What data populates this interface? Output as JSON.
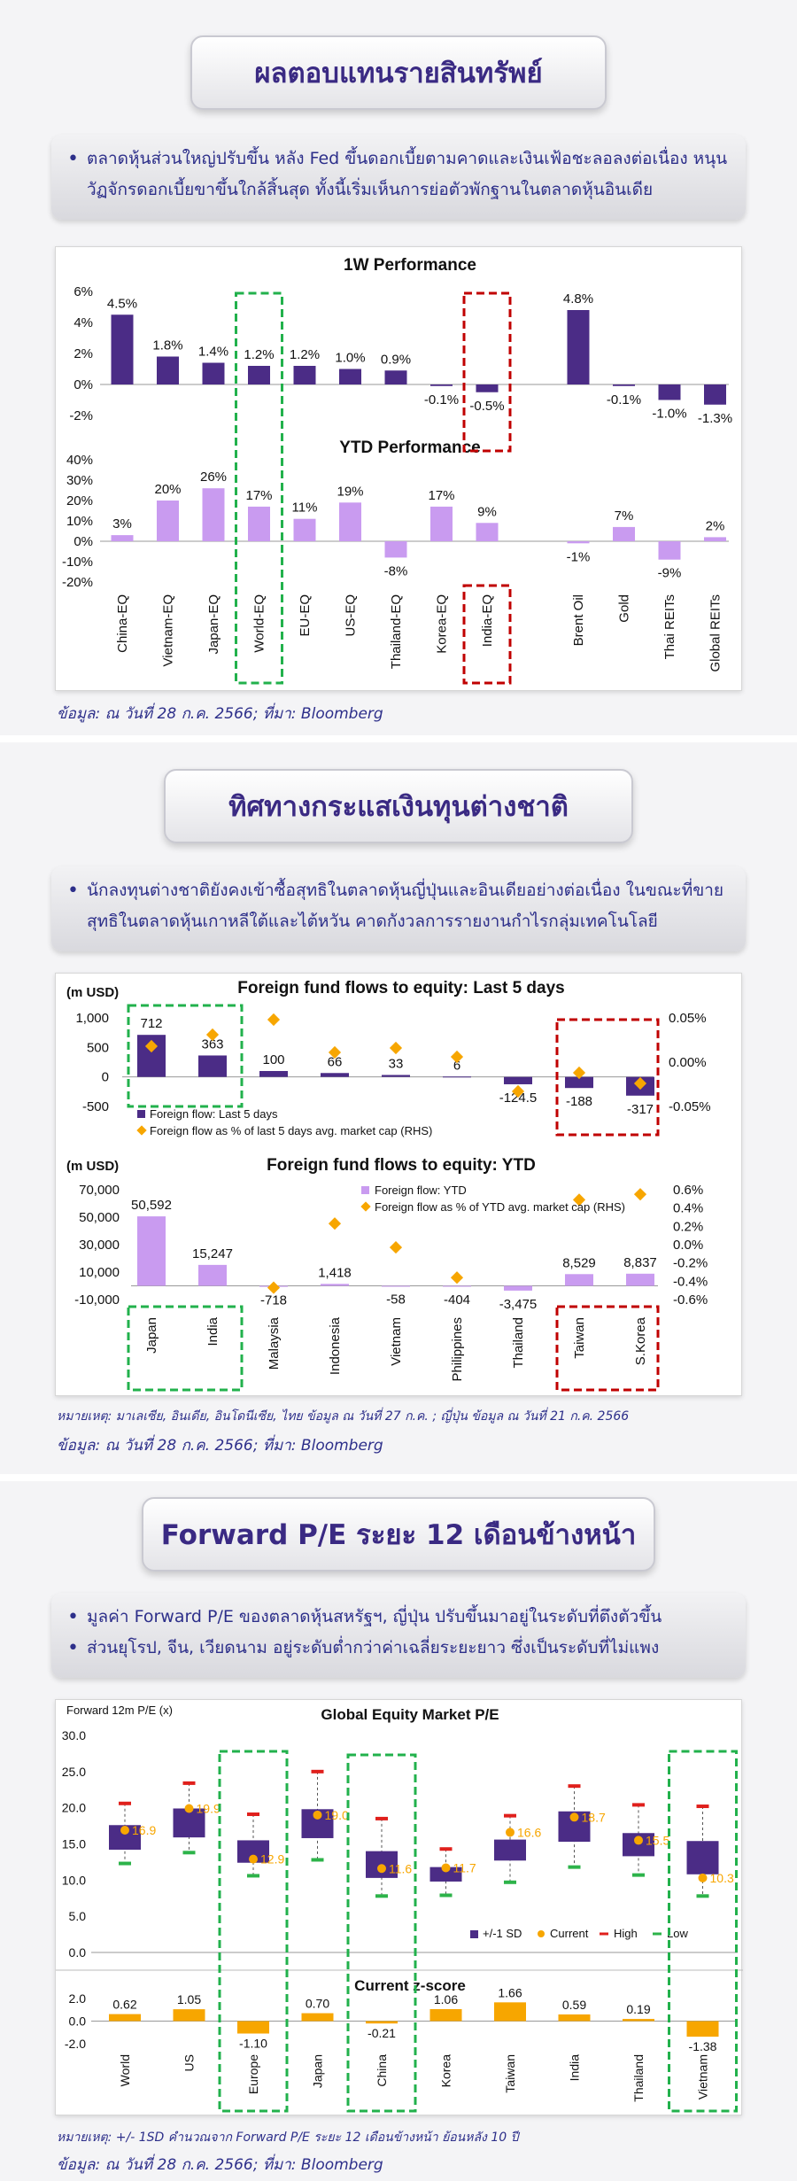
{
  "section1": {
    "title": "ผลตอบแทนรายสินทรัพย์",
    "bullets": [
      "ตลาดหุ้นส่วนใหญ่ปรับขึ้น หลัง Fed ขึ้นดอกเบี้ยตามคาดและเงินเฟ้อชะลอลงต่อเนื่อง หนุนวัฏจักรดอกเบี้ยขาขึ้นใกล้สิ้นสุด ทั้งนี้เริ่มเห็นการย่อตัวพักฐานในตลาดหุ้นอินเดีย"
    ],
    "source": "ข้อมูล: ณ วันที่ 28 ก.ค. 2566; ที่มา: Bloomberg"
  },
  "section2": {
    "title": "ทิศทางกระแสเงินทุนต่างชาติ",
    "bullets": [
      "นักลงทุนต่างชาติยังคงเข้าซื้อสุทธิในตลาดหุ้นญี่ปุ่นและอินเดียอย่างต่อเนื่อง ในขณะที่ขายสุทธิในตลาดหุ้นเกาหลีใต้และไต้หวัน คาดกังวลการรายงานกำไรกลุ่มเทคโนโลยี"
    ],
    "note": "หมายเหตุ: มาเลเซีย, อินเดีย, อินโดนีเซีย, ไทย ข้อมูล ณ วันที่ 27 ก.ค. ; ญี่ปุ่น ข้อมูล ณ วันที่ 21 ก.ค. 2566",
    "source": "ข้อมูล: ณ วันที่ 28 ก.ค. 2566; ที่มา: Bloomberg"
  },
  "section3": {
    "title": "Forward P/E ระยะ 12 เดือนข้างหน้า",
    "bullets": [
      "มูลค่า Forward P/E ของตลาดหุ้นสหรัฐฯ, ญี่ปุ่น ปรับขึ้นมาอยู่ในระดับที่ตึงตัวขึ้น",
      "ส่วนยุโรป, จีน, เวียดนาม อยู่ระดับต่ำกว่าค่าเฉลี่ยระยะยาว ซึ่งเป็นระดับที่ไม่แพง"
    ],
    "note": "หมายเหตุ: +/- 1SD คำนวณจาก Forward P/E ระยะ 12 เดือนข้างหน้า ย้อนหลัง 10 ปี",
    "source": "ข้อมูล: ณ วันที่ 28 ก.ค. 2566; ที่มา: Bloomberg"
  },
  "colors": {
    "dark_purple": "#4b2c86",
    "light_purple": "#c99bf0",
    "orange": "#f7a600",
    "green_box": "#22b14c",
    "red_box": "#c00000",
    "red_high": "#e0201c",
    "green_low": "#2db34a"
  },
  "chart_data": [
    {
      "type": "bar",
      "title": "1W Performance",
      "categories": [
        "China-EQ",
        "Vietnam-EQ",
        "Japan-EQ",
        "World-EQ",
        "EU-EQ",
        "US-EQ",
        "Thailand-EQ",
        "Korea-EQ",
        "India-EQ",
        "Brent Oil",
        "Gold",
        "Thai REITs",
        "Global REITs"
      ],
      "values": [
        4.5,
        1.8,
        1.4,
        1.2,
        1.2,
        1.0,
        0.9,
        -0.1,
        -0.5,
        4.8,
        -0.1,
        -1.0,
        -1.3
      ],
      "labels": [
        "4.5%",
        "1.8%",
        "1.4%",
        "1.2%",
        "1.2%",
        "1.0%",
        "0.9%",
        "-0.1%",
        "-0.5%",
        "4.8%",
        "-0.1%",
        "-1.0%",
        "-1.3%"
      ],
      "ylim": [
        -2,
        6
      ],
      "yticks": [
        "6%",
        "4%",
        "2%",
        "0%",
        "-2%"
      ]
    },
    {
      "type": "bar",
      "title": "YTD Performance",
      "categories": [
        "China-EQ",
        "Vietnam-EQ",
        "Japan-EQ",
        "World-EQ",
        "EU-EQ",
        "US-EQ",
        "Thailand-EQ",
        "Korea-EQ",
        "India-EQ",
        "Brent Oil",
        "Gold",
        "Thai REITs",
        "Global REITs"
      ],
      "values": [
        3,
        20,
        26,
        17,
        11,
        19,
        -8,
        17,
        9,
        -1,
        7,
        -9,
        2
      ],
      "labels": [
        "3%",
        "20%",
        "26%",
        "17%",
        "11%",
        "19%",
        "-8%",
        "17%",
        "9%",
        "-1%",
        "7%",
        "-9%",
        "2%"
      ],
      "ylim": [
        -20,
        40
      ],
      "yticks": [
        "40%",
        "30%",
        "20%",
        "10%",
        "0%",
        "-10%",
        "-20%"
      ]
    },
    {
      "type": "bar",
      "title": "Foreign fund flows to equity: Last 5 days",
      "ylabel": "(m USD)",
      "categories": [
        "Japan",
        "India",
        "Malaysia",
        "Indonesia",
        "Vietnam",
        "Philippines",
        "Thailand",
        "Taiwan",
        "S.Korea"
      ],
      "series": [
        {
          "name": "Foreign flow: Last 5 days",
          "values": [
            712,
            363,
            100,
            66,
            33,
            6,
            -124.5,
            -188,
            -317
          ],
          "labels": [
            "712",
            "363",
            "100",
            "66",
            "33",
            "6",
            "-124.5",
            "-188",
            "-317"
          ]
        },
        {
          "name": "Foreign flow as % of last 5 days avg. market cap (RHS)",
          "values": [
            0.018,
            0.031,
            0.048,
            0.011,
            0.016,
            0.006,
            -0.033,
            -0.012,
            -0.024
          ]
        }
      ],
      "ylim": [
        -500,
        1000
      ],
      "yticks": [
        "1,000",
        "500",
        "0",
        "-500"
      ],
      "y2lim": [
        -0.05,
        0.05
      ],
      "y2ticks": [
        "0.05%",
        "0.00%",
        "-0.05%"
      ]
    },
    {
      "type": "bar",
      "title": "Foreign fund flows to equity: YTD",
      "ylabel": "(m USD)",
      "categories": [
        "Japan",
        "India",
        "Malaysia",
        "Indonesia",
        "Vietnam",
        "Philippines",
        "Thailand",
        "Taiwan",
        "S.Korea"
      ],
      "series": [
        {
          "name": "Foreign flow: YTD",
          "values": [
            50592,
            15247,
            -718,
            1418,
            -58,
            -404,
            -3475,
            8529,
            8837
          ],
          "labels": [
            "50,592",
            "15,247",
            "-718",
            "1,418",
            "-58",
            "-404",
            "-3,475",
            "8,529",
            "8,837"
          ]
        },
        {
          "name": "Foreign flow as % of YTD avg. market cap (RHS)",
          "values": [
            null,
            null,
            -0.47,
            0.23,
            -0.03,
            -0.36,
            null,
            0.49,
            0.55
          ]
        }
      ],
      "ylim": [
        -10000,
        70000
      ],
      "yticks": [
        "70,000",
        "50,000",
        "30,000",
        "10,000",
        "-10,000"
      ],
      "y2lim": [
        -0.6,
        0.6
      ],
      "y2ticks": [
        "0.6%",
        "0.4%",
        "0.2%",
        "0.0%",
        "-0.2%",
        "-0.4%",
        "-0.6%"
      ]
    },
    {
      "type": "bar",
      "title": "Global Equity Market P/E",
      "ylabel": "Forward 12m P/E (x)",
      "categories": [
        "World",
        "US",
        "Europe",
        "Japan",
        "China",
        "Korea",
        "Taiwan",
        "India",
        "Thailand",
        "Vietnam"
      ],
      "series": [
        {
          "name": "+/-1 SD",
          "low": [
            14.2,
            15.9,
            12.4,
            15.8,
            10.3,
            9.8,
            12.7,
            15.3,
            13.3,
            10.8
          ],
          "high": [
            17.6,
            19.9,
            15.5,
            19.8,
            14.0,
            11.8,
            15.6,
            19.5,
            16.5,
            15.4
          ]
        },
        {
          "name": "Current",
          "values": [
            16.9,
            19.9,
            12.9,
            19.0,
            11.6,
            11.7,
            16.6,
            18.7,
            15.5,
            10.3
          ],
          "labels": [
            "16.9",
            "19.9",
            "12.9",
            "19.0",
            "11.6",
            "11.7",
            "16.6",
            "18.7",
            "15.5",
            "10.3"
          ]
        },
        {
          "name": "High",
          "values": [
            20.6,
            23.4,
            19.1,
            25.0,
            18.5,
            14.3,
            18.9,
            23.0,
            20.4,
            20.2
          ]
        },
        {
          "name": "Low",
          "values": [
            12.3,
            13.8,
            10.6,
            12.8,
            7.8,
            7.9,
            9.7,
            11.8,
            10.7,
            7.8
          ]
        }
      ],
      "ylim": [
        0,
        30
      ],
      "yticks": [
        "30.0",
        "25.0",
        "20.0",
        "15.0",
        "10.0",
        "5.0",
        "0.0"
      ]
    },
    {
      "type": "bar",
      "title": "Current z-score",
      "categories": [
        "World",
        "US",
        "Europe",
        "Japan",
        "China",
        "Korea",
        "Taiwan",
        "India",
        "Thailand",
        "Vietnam"
      ],
      "values": [
        0.62,
        1.05,
        -1.1,
        0.7,
        -0.21,
        1.06,
        1.66,
        0.59,
        0.19,
        -1.38
      ],
      "labels": [
        "0.62",
        "1.05",
        "-1.10",
        "0.70",
        "-0.21",
        "1.06",
        "1.66",
        "0.59",
        "0.19",
        "-1.38"
      ],
      "ylim": [
        -2,
        2
      ],
      "yticks": [
        "2.0",
        "0.0",
        "-2.0"
      ]
    }
  ]
}
